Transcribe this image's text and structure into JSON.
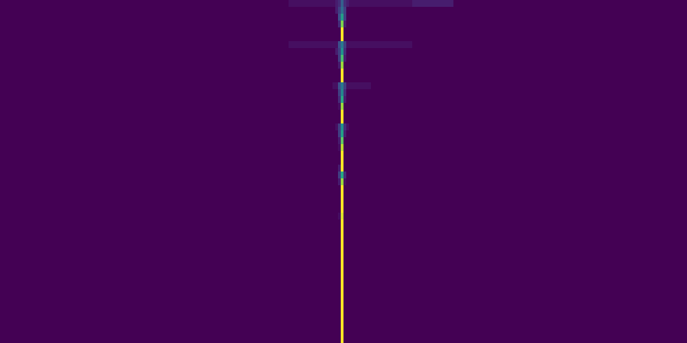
{
  "chart_data": {
    "type": "heatmap",
    "color": "viridis",
    "tick_labels": false,
    "grid": false,
    "xlim": [
      0,
      250
    ],
    "ylim": [
      0,
      50
    ],
    "x_edges": [
      0,
      105,
      110,
      115,
      118,
      120,
      121,
      122,
      123,
      124,
      125,
      126,
      127,
      128,
      130,
      135,
      140,
      150,
      165,
      250
    ],
    "y_edges": [
      0,
      1,
      2,
      3,
      4,
      5,
      6,
      7,
      8,
      9,
      10,
      11,
      12,
      13,
      14,
      15,
      16,
      17,
      18,
      19,
      20,
      21,
      22,
      23,
      24,
      25,
      26,
      27,
      28,
      29,
      30,
      31,
      32,
      33,
      34,
      35,
      36,
      37,
      38,
      39,
      40,
      41,
      42,
      43,
      44,
      45,
      46,
      47,
      48,
      49,
      50
    ],
    "color_range": [
      0,
      1
    ],
    "cells": [
      [
        0,
        0.05,
        0.05,
        0.05,
        0.05,
        0.05,
        0.05,
        0.1,
        0.15,
        0.3,
        0.15,
        0.1,
        0.05,
        0.05,
        0.05,
        0.05,
        0.05,
        0.1,
        0
      ],
      [
        0,
        0,
        0,
        0,
        0,
        0,
        0,
        0.1,
        0.2,
        0.35,
        0.2,
        0,
        0,
        0,
        0,
        0,
        0,
        0,
        0
      ],
      [
        0,
        0,
        0,
        0,
        0,
        0,
        0,
        0,
        0.25,
        0.55,
        0.2,
        0,
        0,
        0,
        0,
        0,
        0,
        0,
        0
      ],
      [
        0,
        0,
        0,
        0,
        0,
        0,
        0,
        0,
        0.15,
        0.8,
        0.1,
        0,
        0,
        0,
        0,
        0,
        0,
        0,
        0
      ],
      [
        0,
        0,
        0,
        0,
        0,
        0,
        0,
        0,
        0,
        1,
        0,
        0,
        0,
        0,
        0,
        0,
        0,
        0,
        0
      ],
      [
        0,
        0,
        0,
        0,
        0,
        0,
        0,
        0,
        0,
        1,
        0,
        0,
        0,
        0,
        0,
        0,
        0,
        0,
        0
      ],
      [
        0,
        0.05,
        0.05,
        0.05,
        0.05,
        0.05,
        0.05,
        0.05,
        0.25,
        0.4,
        0.2,
        0.05,
        0.05,
        0.05,
        0.05,
        0.05,
        0.05,
        0,
        0
      ],
      [
        0,
        0,
        0,
        0,
        0,
        0,
        0,
        0.1,
        0.2,
        0.5,
        0.15,
        0,
        0,
        0,
        0,
        0,
        0,
        0,
        0
      ],
      [
        0,
        0,
        0,
        0,
        0,
        0,
        0,
        0,
        0.2,
        0.7,
        0.1,
        0,
        0,
        0,
        0,
        0,
        0,
        0,
        0
      ],
      [
        0,
        0,
        0,
        0,
        0,
        0,
        0,
        0,
        0.1,
        0.85,
        0,
        0,
        0,
        0,
        0,
        0,
        0,
        0,
        0
      ],
      [
        0,
        0,
        0,
        0,
        0,
        0,
        0,
        0,
        0,
        1,
        0,
        0,
        0,
        0,
        0,
        0,
        0,
        0,
        0
      ],
      [
        0,
        0,
        0,
        0,
        0,
        0,
        0,
        0,
        0,
        1,
        0,
        0,
        0,
        0,
        0,
        0,
        0,
        0,
        0
      ],
      [
        0,
        0,
        0,
        0,
        0,
        0,
        0.05,
        0.05,
        0.25,
        0.4,
        0.2,
        0.05,
        0.05,
        0.05,
        0.05,
        0,
        0,
        0,
        0
      ],
      [
        0,
        0,
        0,
        0,
        0,
        0,
        0,
        0,
        0.2,
        0.45,
        0.15,
        0,
        0,
        0,
        0,
        0,
        0,
        0,
        0
      ],
      [
        0,
        0,
        0,
        0,
        0,
        0,
        0,
        0,
        0.15,
        0.6,
        0.1,
        0,
        0,
        0,
        0,
        0,
        0,
        0,
        0
      ],
      [
        0,
        0,
        0,
        0,
        0,
        0,
        0,
        0,
        0.05,
        0.85,
        0,
        0,
        0,
        0,
        0,
        0,
        0,
        0,
        0
      ],
      [
        0,
        0,
        0,
        0,
        0,
        0,
        0,
        0,
        0,
        1,
        0,
        0,
        0,
        0,
        0,
        0,
        0,
        0,
        0
      ],
      [
        0,
        0,
        0,
        0,
        0,
        0,
        0,
        0,
        0,
        1,
        0,
        0,
        0,
        0,
        0,
        0,
        0,
        0,
        0
      ],
      [
        0,
        0,
        0,
        0,
        0,
        0,
        0,
        0.05,
        0.2,
        0.5,
        0.15,
        0.05,
        0,
        0,
        0,
        0,
        0,
        0,
        0
      ],
      [
        0,
        0,
        0,
        0,
        0,
        0,
        0,
        0,
        0.2,
        0.55,
        0.1,
        0,
        0,
        0,
        0,
        0,
        0,
        0,
        0
      ],
      [
        0,
        0,
        0,
        0,
        0,
        0,
        0,
        0,
        0.1,
        0.75,
        0,
        0,
        0,
        0,
        0,
        0,
        0,
        0,
        0
      ],
      [
        0,
        0,
        0,
        0,
        0,
        0,
        0,
        0,
        0.05,
        0.9,
        0,
        0,
        0,
        0,
        0,
        0,
        0,
        0,
        0
      ],
      [
        0,
        0,
        0,
        0,
        0,
        0,
        0,
        0,
        0,
        1,
        0,
        0,
        0,
        0,
        0,
        0,
        0,
        0,
        0
      ],
      [
        0,
        0,
        0,
        0,
        0,
        0,
        0,
        0,
        0,
        1,
        0,
        0,
        0,
        0,
        0,
        0,
        0,
        0,
        0
      ],
      [
        0,
        0,
        0,
        0,
        0,
        0,
        0,
        0,
        0.1,
        1,
        0,
        0,
        0,
        0,
        0,
        0,
        0,
        0,
        0
      ],
      [
        0,
        0,
        0,
        0,
        0,
        0,
        0,
        0,
        0.2,
        0.6,
        0.15,
        0,
        0,
        0,
        0,
        0,
        0,
        0,
        0
      ],
      [
        0,
        0,
        0,
        0,
        0,
        0,
        0,
        0,
        0.1,
        0.85,
        0.05,
        0,
        0,
        0,
        0,
        0,
        0,
        0,
        0
      ],
      [
        0,
        0,
        0,
        0,
        0,
        0,
        0,
        0,
        0,
        1,
        0,
        0,
        0,
        0,
        0,
        0,
        0,
        0,
        0
      ],
      [
        0,
        0,
        0,
        0,
        0,
        0,
        0,
        0,
        0,
        1,
        0,
        0,
        0,
        0,
        0,
        0,
        0,
        0,
        0
      ],
      [
        0,
        0,
        0,
        0,
        0,
        0,
        0,
        0,
        0,
        1,
        0,
        0,
        0,
        0,
        0,
        0,
        0,
        0,
        0
      ],
      [
        0,
        0,
        0,
        0,
        0,
        0,
        0,
        0,
        0,
        1,
        0,
        0,
        0,
        0,
        0,
        0,
        0,
        0,
        0
      ],
      [
        0,
        0,
        0,
        0,
        0,
        0,
        0,
        0,
        0.05,
        0.95,
        0,
        0,
        0,
        0,
        0,
        0,
        0,
        0,
        0
      ],
      [
        0,
        0,
        0,
        0,
        0,
        0,
        0,
        0,
        0,
        1,
        0,
        0,
        0,
        0,
        0,
        0,
        0,
        0,
        0
      ],
      [
        0,
        0,
        0,
        0,
        0,
        0,
        0,
        0,
        0,
        1,
        0,
        0,
        0,
        0,
        0,
        0,
        0,
        0,
        0
      ],
      [
        0,
        0,
        0,
        0,
        0,
        0,
        0,
        0,
        0,
        1,
        0,
        0,
        0,
        0,
        0,
        0,
        0,
        0,
        0
      ],
      [
        0,
        0,
        0,
        0,
        0,
        0,
        0,
        0,
        0,
        1,
        0,
        0,
        0,
        0,
        0,
        0,
        0,
        0,
        0
      ],
      [
        0,
        0,
        0,
        0,
        0,
        0,
        0,
        0,
        0,
        1,
        0,
        0,
        0,
        0,
        0,
        0,
        0,
        0,
        0
      ],
      [
        0,
        0,
        0,
        0,
        0,
        0,
        0,
        0,
        0,
        1,
        0,
        0,
        0,
        0,
        0,
        0,
        0,
        0,
        0
      ],
      [
        0,
        0,
        0,
        0,
        0,
        0,
        0,
        0,
        0,
        1,
        0,
        0,
        0,
        0,
        0,
        0,
        0,
        0,
        0
      ],
      [
        0,
        0,
        0,
        0,
        0,
        0,
        0,
        0,
        0,
        1,
        0,
        0,
        0,
        0,
        0,
        0,
        0,
        0,
        0
      ],
      [
        0,
        0,
        0,
        0,
        0,
        0,
        0,
        0,
        0,
        1,
        0,
        0,
        0,
        0,
        0,
        0,
        0,
        0,
        0
      ],
      [
        0,
        0,
        0,
        0,
        0,
        0,
        0,
        0,
        0,
        1,
        0,
        0,
        0,
        0,
        0,
        0,
        0,
        0,
        0
      ],
      [
        0,
        0,
        0,
        0,
        0,
        0,
        0,
        0,
        0,
        1,
        0,
        0,
        0,
        0,
        0,
        0,
        0,
        0,
        0
      ],
      [
        0,
        0,
        0,
        0,
        0,
        0,
        0,
        0,
        0,
        1,
        0,
        0,
        0,
        0,
        0,
        0,
        0,
        0,
        0
      ],
      [
        0,
        0,
        0,
        0,
        0,
        0,
        0,
        0,
        0,
        1,
        0,
        0,
        0,
        0,
        0,
        0,
        0,
        0,
        0
      ],
      [
        0,
        0,
        0,
        0,
        0,
        0,
        0,
        0,
        0,
        1,
        0,
        0,
        0,
        0,
        0,
        0,
        0,
        0,
        0
      ],
      [
        0,
        0,
        0,
        0,
        0,
        0,
        0,
        0,
        0,
        1,
        0,
        0,
        0,
        0,
        0,
        0,
        0,
        0,
        0
      ],
      [
        0,
        0,
        0,
        0,
        0,
        0,
        0,
        0,
        0,
        1,
        0,
        0,
        0,
        0,
        0,
        0,
        0,
        0,
        0
      ],
      [
        0,
        0,
        0,
        0,
        0,
        0,
        0,
        0,
        0,
        1,
        0,
        0,
        0,
        0,
        0,
        0,
        0,
        0,
        0
      ],
      [
        0,
        0,
        0,
        0,
        0,
        0,
        0,
        0,
        0,
        1,
        0,
        0,
        0,
        0,
        0,
        0,
        0,
        0,
        0
      ]
    ]
  }
}
